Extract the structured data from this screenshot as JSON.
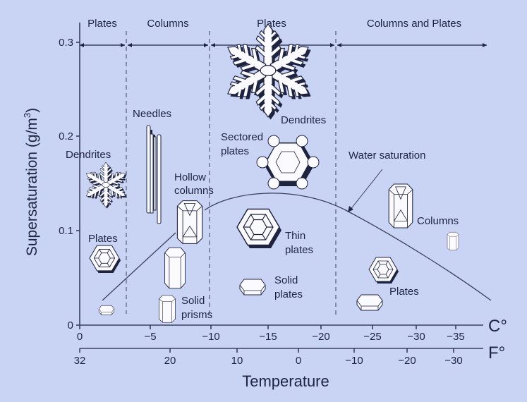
{
  "regimes": [
    "Plates",
    "Columns",
    "Plates",
    "Columns and Plates"
  ],
  "y_axis": {
    "label": "Supersaturation (g/m",
    "label_sup": "3",
    "label_close": ")",
    "ticks": [
      "0",
      "0.1",
      "0.2",
      "0.3"
    ]
  },
  "x_axis_c": {
    "unit": "C°",
    "ticks": [
      "0",
      "−5",
      "−10",
      "−15",
      "−20",
      "−25",
      "−30",
      "−35"
    ]
  },
  "x_axis_f": {
    "unit": "F°",
    "ticks": [
      "32",
      "20",
      "10",
      "0",
      "−10",
      "−20",
      "−30"
    ]
  },
  "x_label": "Temperature",
  "labels": {
    "needles": "Needles",
    "dendrites_left": "Dendrites",
    "plates_left": "Plates",
    "hollow_1": "Hollow",
    "hollow_2": "columns",
    "solid_prisms_1": "Solid",
    "solid_prisms_2": "prisms",
    "dendrites_top": "Dendrites",
    "sectored_1": "Sectored",
    "sectored_2": "plates",
    "thin_1": "Thin",
    "thin_2": "plates",
    "solid_plates_1": "Solid",
    "solid_plates_2": "plates",
    "water_saturation": "Water saturation",
    "columns_right": "Columns",
    "plates_right": "Plates"
  },
  "colors": {
    "background": "#c9d4f5",
    "ink": "#1e2340"
  }
}
